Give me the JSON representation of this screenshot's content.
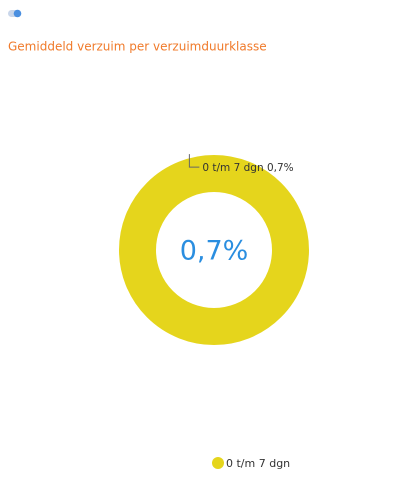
{
  "chart_data": {
    "type": "donut",
    "title": "Gemiddeld verzuim per verzuimduurklasse",
    "categories": [
      "0 t/m 7 dgn"
    ],
    "values": [
      0.7
    ],
    "value_labels": [
      "0,7%"
    ],
    "colors": [
      "#e5d51c"
    ],
    "legend": "bottom"
  }
}
